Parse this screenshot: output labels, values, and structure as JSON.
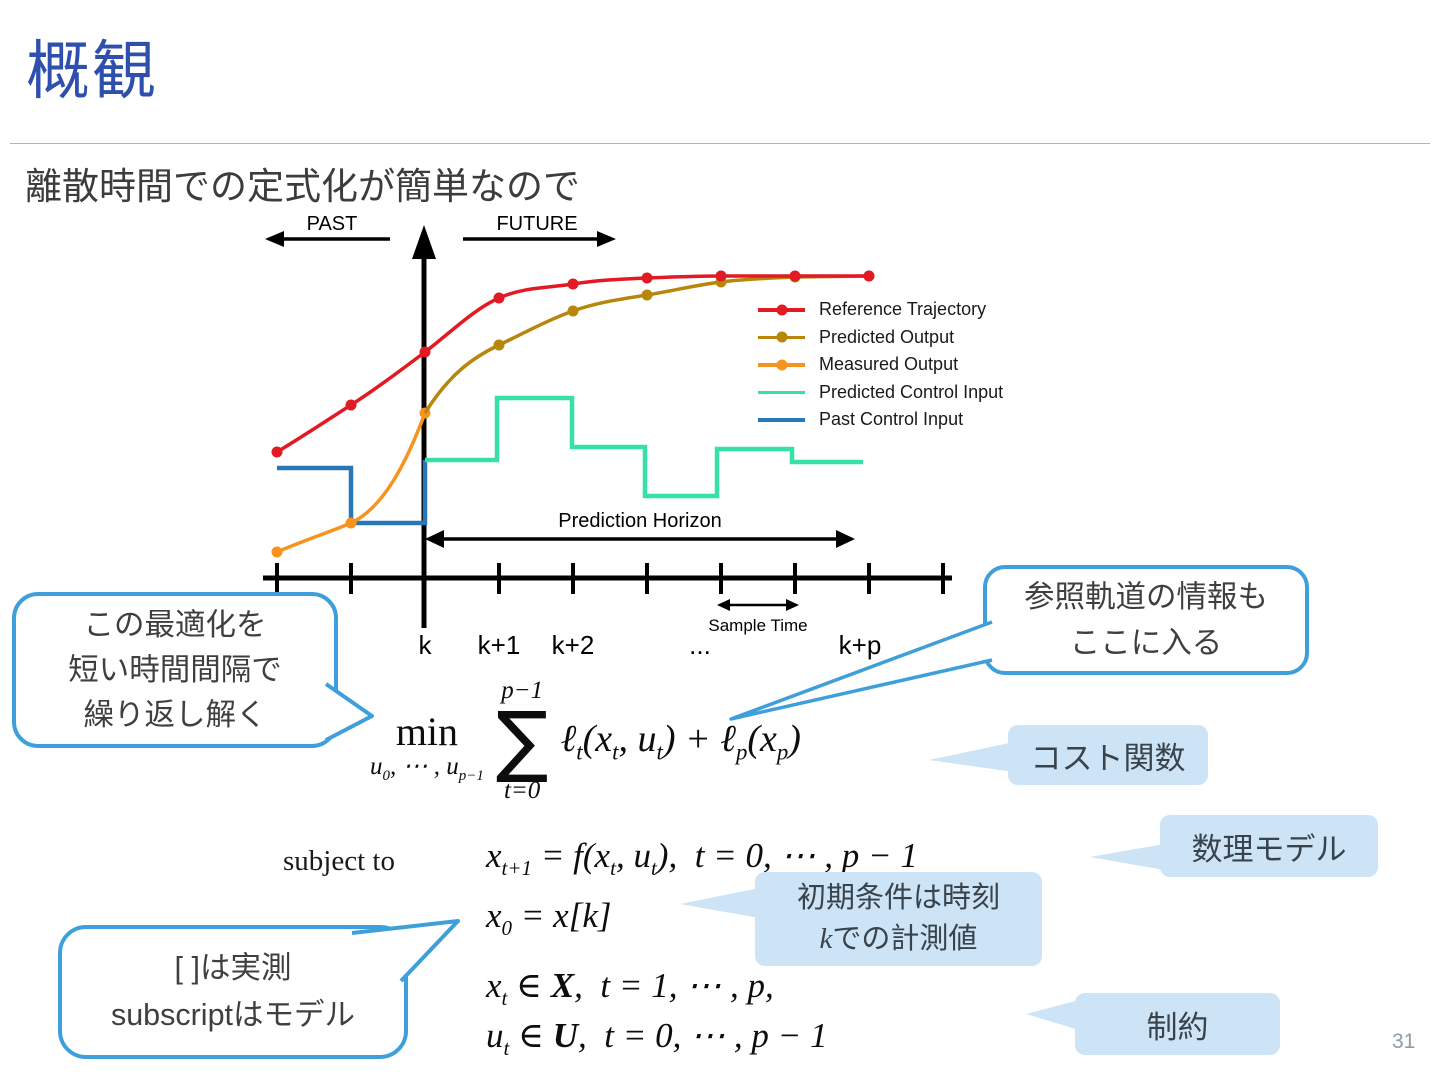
{
  "slide": {
    "title": "概観",
    "subtitle": "離散時間での定式化が簡単なので",
    "page_number": "31"
  },
  "diagram": {
    "past_label": "PAST",
    "future_label": "FUTURE",
    "prediction_horizon_label": "Prediction Horizon",
    "sample_time_label": "Sample Time",
    "axis_ticks": [
      "k",
      "k+1",
      "k+2",
      "...",
      "k+p"
    ],
    "legend": [
      {
        "label": "Reference Trajectory",
        "color": "#e11a24",
        "dot": true
      },
      {
        "label": "Predicted Output",
        "color": "#b8860b",
        "dot": true
      },
      {
        "label": "Measured Output",
        "color": "#f7941e",
        "dot": true
      },
      {
        "label": "Predicted Control Input",
        "color": "#35e1a5",
        "dot": false
      },
      {
        "label": "Past Control Input",
        "color": "#2878b8",
        "dot": false
      }
    ]
  },
  "formulas": {
    "min_operator": "min",
    "min_subscript": "u_{0}, ⋯ , u_{p−1}",
    "sum_symbol": "∑",
    "sum_upper": "p−1",
    "sum_lower": "t=0",
    "objective": "ℓ_{t}(x_{t}, u_{t}) + ℓ_{p}(x_{p})",
    "subject_to": "subject to",
    "constraints": [
      "x_{t+1} = f(x_{t}, u_{t}),  t = 0, ⋯ , p − 1",
      "x_{0} = x[k]",
      "x_{t} ∈ %X%,  t = 1, ⋯ , p,",
      "u_{t} ∈ %U%,  t = 0, ⋯ , p − 1"
    ]
  },
  "callouts": {
    "optimization": {
      "lines": [
        "この最適化を",
        "短い時間間隔で",
        "繰り返し解く"
      ]
    },
    "reference": {
      "lines": [
        "参照軌道の情報も",
        "ここに入る"
      ]
    },
    "measurement": {
      "lines": [
        "[ ]は実測",
        "subscriptはモデル"
      ]
    },
    "cost_label": "コスト関数",
    "model_label": "数理モデル",
    "initial_lines": [
      "初期条件は時刻",
      "$k$での計測値"
    ],
    "constraint_label": "制約"
  },
  "colors": {
    "title_blue": "#2e4fae",
    "callout_border_blue": "#3f9fdb",
    "label_box_fill": "#cde4f6",
    "label_box_text": "#39434c",
    "reference_red": "#e11a24",
    "predicted_olive": "#b8860b",
    "measured_orange": "#f7941e",
    "predicted_input_mint": "#35e1a5",
    "past_input_blue": "#2878b8"
  }
}
